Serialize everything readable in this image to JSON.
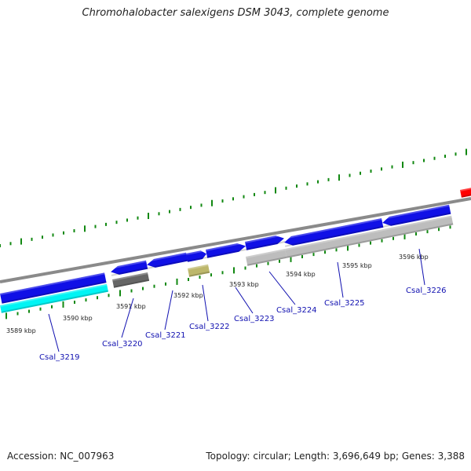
{
  "title": "Chromohalobacter salexigens DSM 3043, complete genome",
  "footer": {
    "accession": "Accession: NC_007963",
    "summary": "Topology: circular; Length: 3,696,649 bp; Genes: 3,388"
  },
  "colors": {
    "forward_cds": "#1010e6",
    "reverse_cds_cyan": "#00f4f4",
    "rna_dark": "#666666",
    "rna_light": "#bdbdbd",
    "rna_khaki": "#bdb76b",
    "highlight_red": "#ff0000",
    "backbone": "#8a8a8a",
    "ticks": "#118811",
    "label": "#1010b0"
  },
  "scale_labels": [
    "3589 kbp",
    "3590 kbp",
    "3591 kbp",
    "3592 kbp",
    "3593 kbp",
    "3594 kbp",
    "3595 kbp",
    "3596 kbp"
  ],
  "gene_labels": [
    "Csal_3219",
    "Csal_3220",
    "Csal_3221",
    "Csal_3222",
    "Csal_3223",
    "Csal_3224",
    "Csal_3225",
    "Csal_3226"
  ]
}
